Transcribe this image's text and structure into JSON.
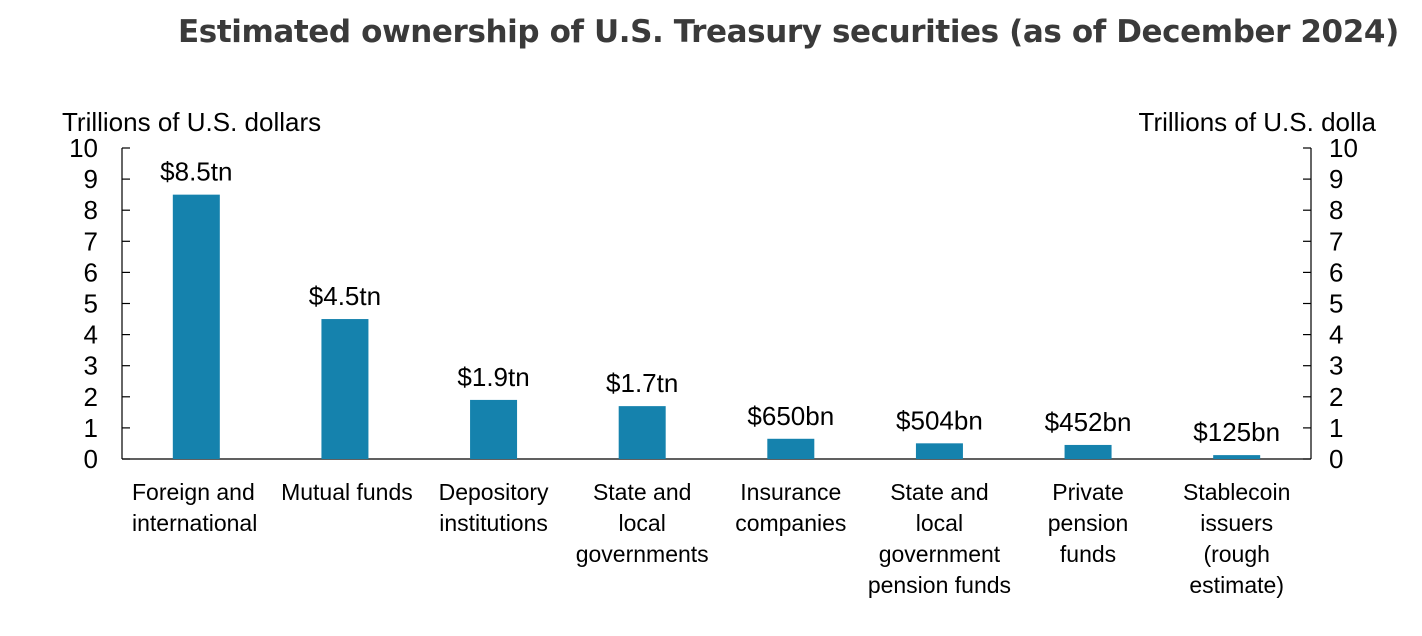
{
  "chart_data": {
    "type": "bar",
    "title": "Estimated ownership of U.S. Treasury securities (as of December 2024)",
    "ylabel_left": "Trillions of U.S. dollars",
    "ylabel_right": "Trillions of U.S. dolla",
    "ylim": [
      0,
      10
    ],
    "yticks": [
      "0",
      "1",
      "2",
      "3",
      "4",
      "5",
      "6",
      "7",
      "8",
      "9",
      "10"
    ],
    "categories": [
      [
        "Foreign and",
        "international"
      ],
      [
        "Mutual funds"
      ],
      [
        "Depository",
        "institutions"
      ],
      [
        "State and",
        "local",
        "governments"
      ],
      [
        "Insurance",
        "companies"
      ],
      [
        "State and",
        "local",
        "government",
        "pension funds"
      ],
      [
        "Private",
        "pension",
        "funds"
      ],
      [
        "Stablecoin",
        "issuers",
        "(rough",
        "estimate)"
      ]
    ],
    "values": [
      8.5,
      4.5,
      1.9,
      1.7,
      0.65,
      0.504,
      0.452,
      0.125
    ],
    "data_labels": [
      "$8.5tn",
      "$4.5tn",
      "$1.9tn",
      "$1.7tn",
      "$650bn",
      "$504bn",
      "$452bn",
      "$125bn"
    ],
    "bar_color": "#1582ad",
    "grid": false,
    "legend": "none"
  }
}
